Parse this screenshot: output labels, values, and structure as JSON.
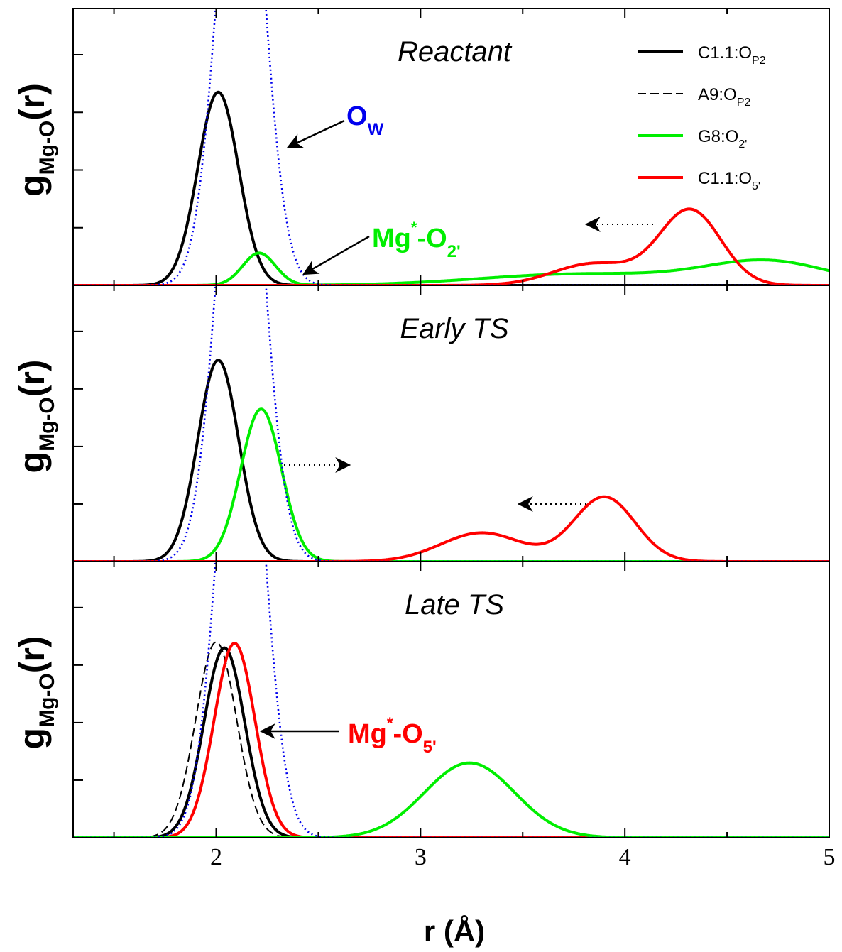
{
  "chart_data": {
    "type": "line",
    "xlabel": "r (Å)",
    "xlim": [
      1.3,
      5.0
    ],
    "x_ticks": [
      2,
      3,
      4,
      5
    ],
    "x_tick_labels": [
      "2",
      "3",
      "4",
      "5"
    ],
    "x_minor_ticks": [
      1.5,
      2.5,
      3.5,
      4.5
    ],
    "legend": {
      "position": "top-right",
      "entries": [
        {
          "series": "C1.1:OP2",
          "base": "C1.1:O",
          "sub": "P2",
          "sup": "",
          "color": "#000000",
          "style": "solid"
        },
        {
          "series": "A9:OP2",
          "base": "A9:O",
          "sub": "P2",
          "sup": "",
          "color": "#000000",
          "style": "dashed"
        },
        {
          "series": "G8:O2'",
          "base": "G8:O",
          "sub": "2'",
          "sup": "",
          "color": "#00ee00",
          "style": "solid"
        },
        {
          "series": "C1.1:O5'",
          "base": "C1.1:O",
          "sub": "5'",
          "sup": "",
          "color": "#ff0000",
          "style": "solid"
        }
      ]
    },
    "panels": [
      {
        "title": "Reactant",
        "ylabel": {
          "base": "g",
          "sub": "Mg-O",
          "tail": "(r)"
        },
        "ylim": [
          0,
          4.8
        ],
        "y_ticks": [
          1,
          2,
          3,
          4
        ],
        "series": [
          {
            "name": "C1.1:OP2",
            "color": "#000000",
            "style": "solid",
            "components": [
              {
                "mu": 2.01,
                "sigma": 0.1,
                "amp": 3.35
              }
            ]
          },
          {
            "name": "G8:O2'",
            "color": "#00ee00",
            "style": "solid",
            "components": [
              {
                "mu": 2.21,
                "sigma": 0.08,
                "amp": 0.56
              },
              {
                "mu": 3.8,
                "sigma": 0.5,
                "amp": 0.2
              },
              {
                "mu": 4.7,
                "sigma": 0.3,
                "amp": 0.4
              }
            ]
          },
          {
            "name": "C1.1:O5'",
            "color": "#ff0000",
            "style": "solid",
            "components": [
              {
                "mu": 3.85,
                "sigma": 0.2,
                "amp": 0.38
              },
              {
                "mu": 4.32,
                "sigma": 0.15,
                "amp": 1.3
              }
            ]
          },
          {
            "name": "OW",
            "color": "#0000ee",
            "style": "dotted",
            "components": [
              {
                "mu": 2.12,
                "sigma": 0.11,
                "amp": 9.0
              }
            ]
          }
        ],
        "annotations": [
          {
            "base": "O",
            "sup": "",
            "sub": "W",
            "pre_sup": "",
            "color": "#0000ee"
          },
          {
            "base": "Mg",
            "sup": "*",
            "sub": "2'",
            "pre_sup": "-O",
            "color": "#00ee00"
          }
        ]
      },
      {
        "title": "Early TS",
        "ylabel": {
          "base": "g",
          "sub": "Mg-O",
          "tail": "(r)"
        },
        "ylim": [
          0,
          4.8
        ],
        "y_ticks": [
          1,
          2,
          3,
          4
        ],
        "series": [
          {
            "name": "C1.1:OP2",
            "color": "#000000",
            "style": "solid",
            "components": [
              {
                "mu": 2.01,
                "sigma": 0.1,
                "amp": 3.5
              }
            ]
          },
          {
            "name": "G8:O2'",
            "color": "#00ee00",
            "style": "solid",
            "components": [
              {
                "mu": 2.22,
                "sigma": 0.1,
                "amp": 2.65
              }
            ]
          },
          {
            "name": "C1.1:O5'",
            "color": "#ff0000",
            "style": "solid",
            "components": [
              {
                "mu": 3.3,
                "sigma": 0.2,
                "amp": 0.5
              },
              {
                "mu": 3.9,
                "sigma": 0.15,
                "amp": 1.12
              }
            ]
          },
          {
            "name": "OW",
            "color": "#0000ee",
            "style": "dotted",
            "components": [
              {
                "mu": 2.12,
                "sigma": 0.11,
                "amp": 9.0
              }
            ]
          }
        ],
        "annotations": []
      },
      {
        "title": "Late TS",
        "ylabel": {
          "base": "g",
          "sub": "Mg-O",
          "tail": "(r)"
        },
        "ylim": [
          0,
          4.8
        ],
        "y_ticks": [
          1,
          2,
          3,
          4
        ],
        "series": [
          {
            "name": "A9:OP2",
            "color": "#000000",
            "style": "dashed",
            "components": [
              {
                "mu": 2.0,
                "sigma": 0.1,
                "amp": 3.4
              }
            ]
          },
          {
            "name": "C1.1:OP2",
            "color": "#000000",
            "style": "solid",
            "components": [
              {
                "mu": 2.04,
                "sigma": 0.1,
                "amp": 3.3
              }
            ]
          },
          {
            "name": "C1.1:O5'",
            "color": "#ff0000",
            "style": "solid",
            "components": [
              {
                "mu": 2.09,
                "sigma": 0.1,
                "amp": 3.38
              }
            ]
          },
          {
            "name": "G8:O2'",
            "color": "#00ee00",
            "style": "solid",
            "components": [
              {
                "mu": 3.24,
                "sigma": 0.22,
                "amp": 1.3
              }
            ]
          },
          {
            "name": "OW",
            "color": "#0000ee",
            "style": "dotted",
            "components": [
              {
                "mu": 2.12,
                "sigma": 0.11,
                "amp": 9.0
              }
            ]
          }
        ],
        "annotations": [
          {
            "base": "Mg",
            "sup": "*",
            "sub": "5'",
            "pre_sup": "-O",
            "color": "#ff0000"
          }
        ]
      }
    ]
  }
}
